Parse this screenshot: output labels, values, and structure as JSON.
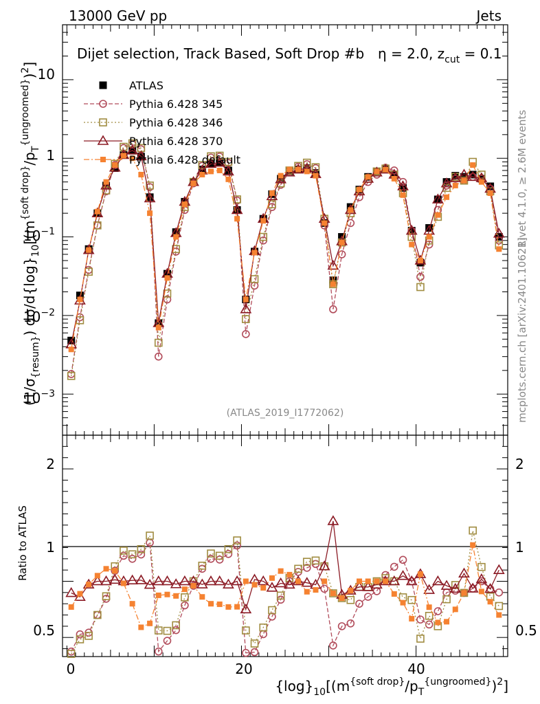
{
  "header": {
    "left": "13000 GeV pp",
    "right": "Jets"
  },
  "chart_data": {
    "type": "scatter",
    "title": "Dijet selection, Track Based, Soft Drop #b",
    "subtitle_beta": "η = 2.0, z",
    "subtitle_cut": "cut",
    "subtitle_val": " = 0.1",
    "analysis_tag": "(ATLAS_2019_I1772062)",
    "side_right_top": "Rivet 4.1.0, ≥ 2.6M events",
    "side_right_bottom": "mcplots.cern.ch [arXiv:2401.10621]",
    "ylabel_main": "(1/σ{resum}) dσ/d{log}10[(m{soft drop}/pT{ungroomed})2]",
    "ylabel_ratio": "Ratio to ATLAS",
    "xlabel": "{log}10[(m{soft drop}/pT{ungroomed})2]",
    "xlim": [
      -0.5,
      50.5
    ],
    "ylim_log": [
      0.0003,
      50
    ],
    "ratio_ylim": [
      0.33,
      2.3
    ],
    "x_ticks": [
      "0",
      "20",
      "40"
    ],
    "y_ticks": [
      "10",
      "1",
      "10^-1",
      "10^-2",
      "10^-3"
    ],
    "ratio_ticks": [
      "0.5",
      "1",
      "2"
    ],
    "x": [
      0.5,
      1.5,
      2.5,
      3.5,
      4.5,
      5.5,
      6.5,
      7.5,
      8.5,
      9.5,
      10.5,
      11.5,
      12.5,
      13.5,
      14.5,
      15.5,
      16.5,
      17.5,
      18.5,
      19.5,
      20.5,
      21.5,
      22.5,
      23.5,
      24.5,
      25.5,
      26.5,
      27.5,
      28.5,
      29.5,
      30.5,
      31.5,
      32.5,
      33.5,
      34.5,
      35.5,
      36.5,
      37.5,
      38.5,
      39.5,
      40.5,
      41.5,
      42.5,
      43.5,
      44.5,
      45.5,
      46.5,
      47.5,
      48.5,
      49.5
    ],
    "series": [
      {
        "name": "ATLAS",
        "color": "#000000",
        "marker": "square-filled",
        "dash": "none",
        "values": [
          0.0048,
          0.018,
          0.07,
          0.2,
          0.45,
          0.75,
          1.1,
          1.25,
          1.05,
          0.32,
          0.008,
          0.034,
          0.115,
          0.28,
          0.5,
          0.72,
          0.85,
          0.88,
          0.7,
          0.22,
          0.016,
          0.065,
          0.17,
          0.35,
          0.55,
          0.68,
          0.72,
          0.75,
          0.65,
          0.15,
          0.028,
          0.1,
          0.24,
          0.4,
          0.58,
          0.68,
          0.72,
          0.62,
          0.42,
          0.12,
          0.047,
          0.13,
          0.3,
          0.5,
          0.6,
          0.58,
          0.62,
          0.55,
          0.44,
          0.1
        ]
      },
      {
        "name": "Pythia 6.428 345",
        "color": "#b14b5a",
        "marker": "circle-open",
        "dash": "6,3",
        "values": [
          0.0018,
          0.0095,
          0.038,
          0.14,
          0.38,
          0.82,
          1.35,
          1.5,
          1.3,
          0.43,
          0.003,
          0.016,
          0.065,
          0.22,
          0.48,
          0.8,
          1.02,
          1.05,
          0.87,
          0.29,
          0.0058,
          0.024,
          0.09,
          0.24,
          0.46,
          0.68,
          0.78,
          0.84,
          0.75,
          0.14,
          0.012,
          0.06,
          0.15,
          0.32,
          0.5,
          0.62,
          0.76,
          0.7,
          0.5,
          0.12,
          0.031,
          0.08,
          0.22,
          0.45,
          0.55,
          0.52,
          0.58,
          0.55,
          0.41,
          0.09
        ]
      },
      {
        "name": "Pythia 6.428 346",
        "color": "#a08c40",
        "marker": "square-open",
        "dash": "2,3",
        "values": [
          0.0017,
          0.0087,
          0.036,
          0.14,
          0.39,
          0.85,
          1.4,
          1.55,
          1.35,
          0.45,
          0.0045,
          0.019,
          0.07,
          0.24,
          0.5,
          0.82,
          1.06,
          1.08,
          0.9,
          0.3,
          0.009,
          0.029,
          0.1,
          0.26,
          0.48,
          0.7,
          0.8,
          0.88,
          0.77,
          0.17,
          0.025,
          0.085,
          0.2,
          0.38,
          0.55,
          0.68,
          0.74,
          0.62,
          0.36,
          0.1,
          0.023,
          0.09,
          0.18,
          0.42,
          0.58,
          0.52,
          0.9,
          0.62,
          0.38,
          0.078
        ]
      },
      {
        "name": "Pythia 6.428 370",
        "color": "#8b1a24",
        "marker": "triangle-open",
        "dash": "none",
        "values": [
          0.0043,
          0.0155,
          0.068,
          0.2,
          0.45,
          0.76,
          1.1,
          1.26,
          1.06,
          0.31,
          0.008,
          0.034,
          0.112,
          0.28,
          0.5,
          0.7,
          0.85,
          0.88,
          0.68,
          0.22,
          0.012,
          0.066,
          0.17,
          0.33,
          0.54,
          0.66,
          0.72,
          0.74,
          0.63,
          0.17,
          0.043,
          0.088,
          0.22,
          0.38,
          0.55,
          0.66,
          0.72,
          0.62,
          0.44,
          0.12,
          0.05,
          0.12,
          0.3,
          0.48,
          0.56,
          0.62,
          0.58,
          0.56,
          0.41,
          0.11
        ]
      },
      {
        "name": "Pythia 6.428 default",
        "color": "#f58231",
        "marker": "square-filled-small",
        "dash": "8,3,2,3",
        "values": [
          0.0037,
          0.016,
          0.068,
          0.21,
          0.5,
          0.82,
          1.08,
          1.0,
          0.62,
          0.2,
          0.007,
          0.03,
          0.1,
          0.26,
          0.48,
          0.62,
          0.68,
          0.7,
          0.54,
          0.17,
          0.016,
          0.063,
          0.16,
          0.36,
          0.6,
          0.72,
          0.72,
          0.68,
          0.6,
          0.15,
          0.025,
          0.085,
          0.22,
          0.4,
          0.58,
          0.68,
          0.72,
          0.55,
          0.34,
          0.08,
          0.05,
          0.1,
          0.19,
          0.32,
          0.45,
          0.52,
          0.82,
          0.5,
          0.36,
          0.07
        ]
      }
    ]
  }
}
